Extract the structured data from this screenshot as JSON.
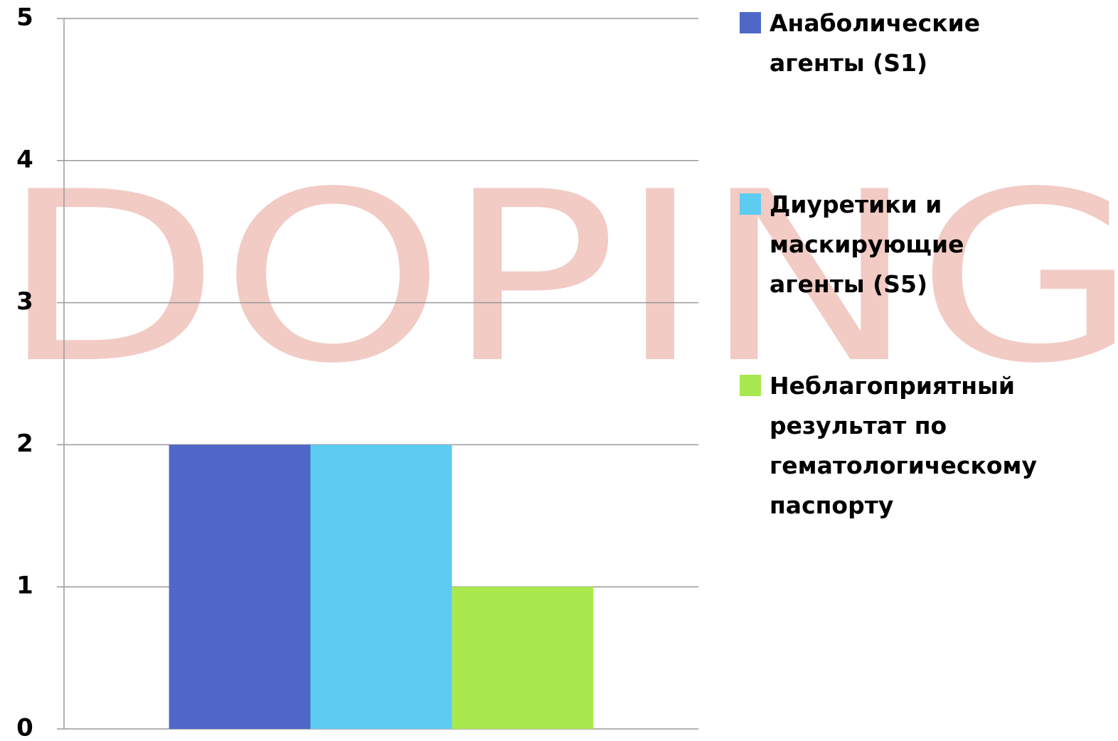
{
  "chart_data": {
    "type": "bar",
    "background_text": "DOPING",
    "categories": [
      null
    ],
    "series": [
      {
        "name": "Анаболические агенты (S1)",
        "color": "#4f67c7",
        "values": [
          2
        ]
      },
      {
        "name": "Диуретики и маскирующие агенты (S5)",
        "color": "#5ecbf1",
        "values": [
          2
        ]
      },
      {
        "name": "Неблагоприятный результат по гематологическому паспорту",
        "color": "#a9e84e",
        "values": [
          1
        ]
      }
    ],
    "ylim": [
      0,
      5
    ],
    "yticks": [
      0,
      1,
      2,
      3,
      4,
      5
    ],
    "grid": true,
    "legend": "right"
  }
}
